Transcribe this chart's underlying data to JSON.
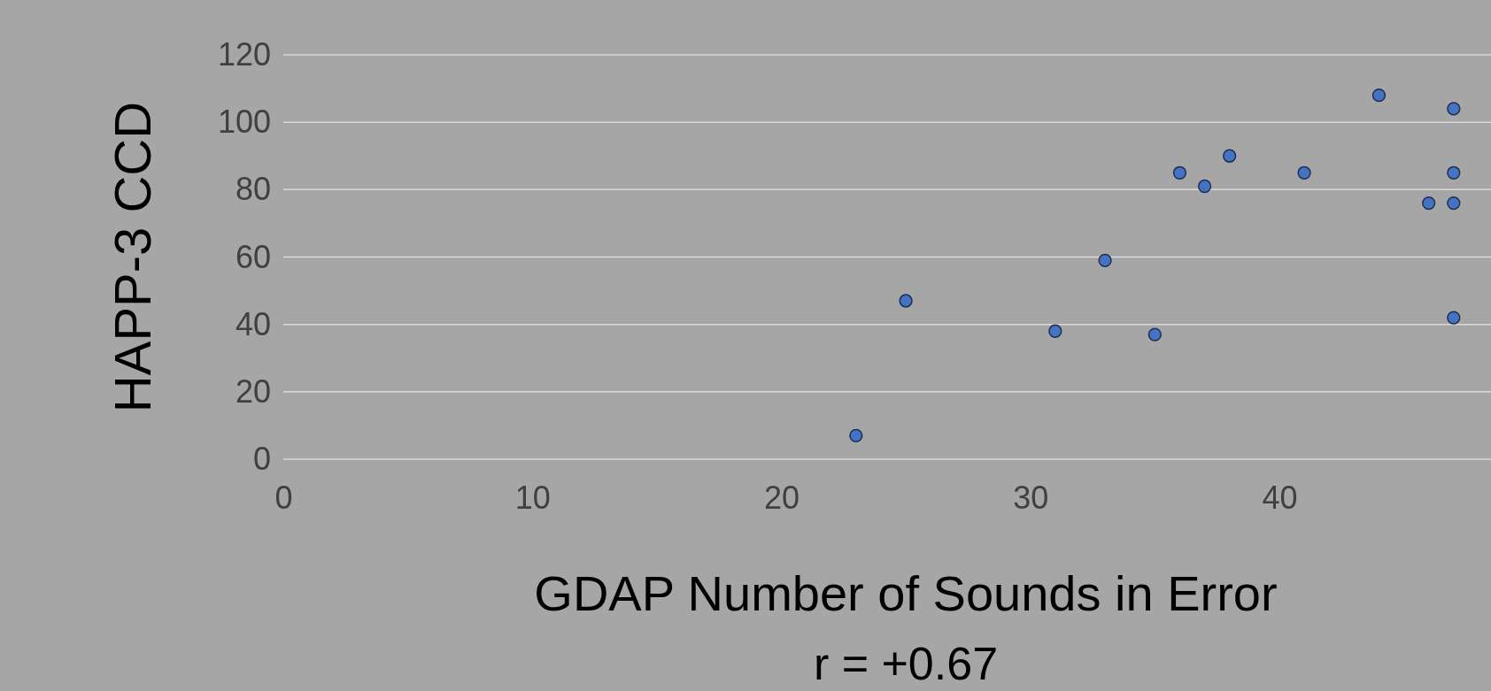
{
  "chart_data": {
    "type": "scatter",
    "xlabel": "GDAP Number of Sounds in Error",
    "ylabel": "HAPP-3 CCD",
    "annotations": [
      "r = +0.67"
    ],
    "x": [
      23,
      25,
      31,
      33,
      35,
      36,
      37,
      38,
      41,
      44,
      46,
      47,
      47,
      47,
      47
    ],
    "series": [
      {
        "color": "#4472c4",
        "values": [
          7,
          47,
          38,
          59,
          37,
          85,
          81,
          90,
          85,
          108,
          76,
          104,
          85,
          76,
          42
        ]
      }
    ],
    "xlim": [
      0,
      48.5
    ],
    "xticks": [
      0,
      10,
      20,
      30,
      40
    ],
    "ylim": [
      0,
      120
    ],
    "yticks": [
      0,
      20,
      40,
      60,
      80,
      100,
      120
    ],
    "grid": "y",
    "marker": "circle"
  }
}
